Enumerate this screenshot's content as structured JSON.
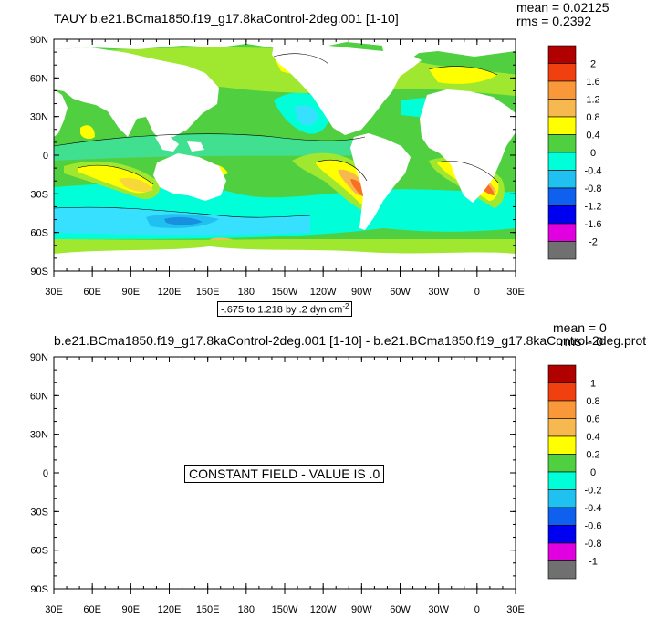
{
  "panels": [
    {
      "title": "TAUY b.e21.BCma1850.f19_g17.8kaControl-2deg.001 [1-10]",
      "mean": "mean = 0.02125",
      "rms": "rms = 0.2392",
      "note_prefix": "-.675 to 1.218 by .2 dyn cm",
      "note_sup": "-2",
      "message": ""
    },
    {
      "title": "b.e21.BCma1850.f19_g17.8kaControl-2deg.001 [1-10] - b.e21.BCma1850.f19_g17.8kaControl-2deg.prot",
      "mean": "mean = 0",
      "rms": "rms = 0",
      "note_prefix": "",
      "note_sup": "",
      "message": "CONSTANT FIELD - VALUE IS .0"
    }
  ],
  "axes": {
    "lat_labels": [
      "90N",
      "60N",
      "30N",
      "0",
      "30S",
      "60S",
      "90S"
    ],
    "lon_labels": [
      "30E",
      "60E",
      "90E",
      "120E",
      "150E",
      "180",
      "150W",
      "120W",
      "90W",
      "60W",
      "30W",
      "0",
      "30E"
    ]
  },
  "colorbars": [
    {
      "labels": [
        "2",
        "1.6",
        "1.2",
        "0.8",
        "0.4",
        "0",
        "-0.4",
        "-0.8",
        "-1.2",
        "-1.6",
        "-2"
      ],
      "colors": [
        "#b00000",
        "#d81818",
        "#f04010",
        "#f87020",
        "#f89838",
        "#f8b850",
        "#f8d838",
        "#ffff00",
        "#a0e830",
        "#50d040",
        "#40e090",
        "#00ffd8",
        "#38e0ff",
        "#20c0f0",
        "#1890e0",
        "#1060f0",
        "#0000f0",
        "#8830d8",
        "#e000e0",
        "#c0c0c0",
        "#707070"
      ]
    },
    {
      "labels": [
        "1",
        "0.8",
        "0.6",
        "0.4",
        "0.2",
        "0",
        "-0.2",
        "-0.4",
        "-0.6",
        "-0.8",
        "-1"
      ],
      "colors": [
        "#b00000",
        "#d81818",
        "#f04010",
        "#f87020",
        "#f89838",
        "#f8b850",
        "#f8d838",
        "#ffff00",
        "#a0e830",
        "#50d040",
        "#40e090",
        "#00ffd8",
        "#38e0ff",
        "#20c0f0",
        "#1890e0",
        "#1060f0",
        "#0000f0",
        "#8830d8",
        "#e000e0",
        "#c0c0c0",
        "#707070"
      ]
    }
  ]
}
